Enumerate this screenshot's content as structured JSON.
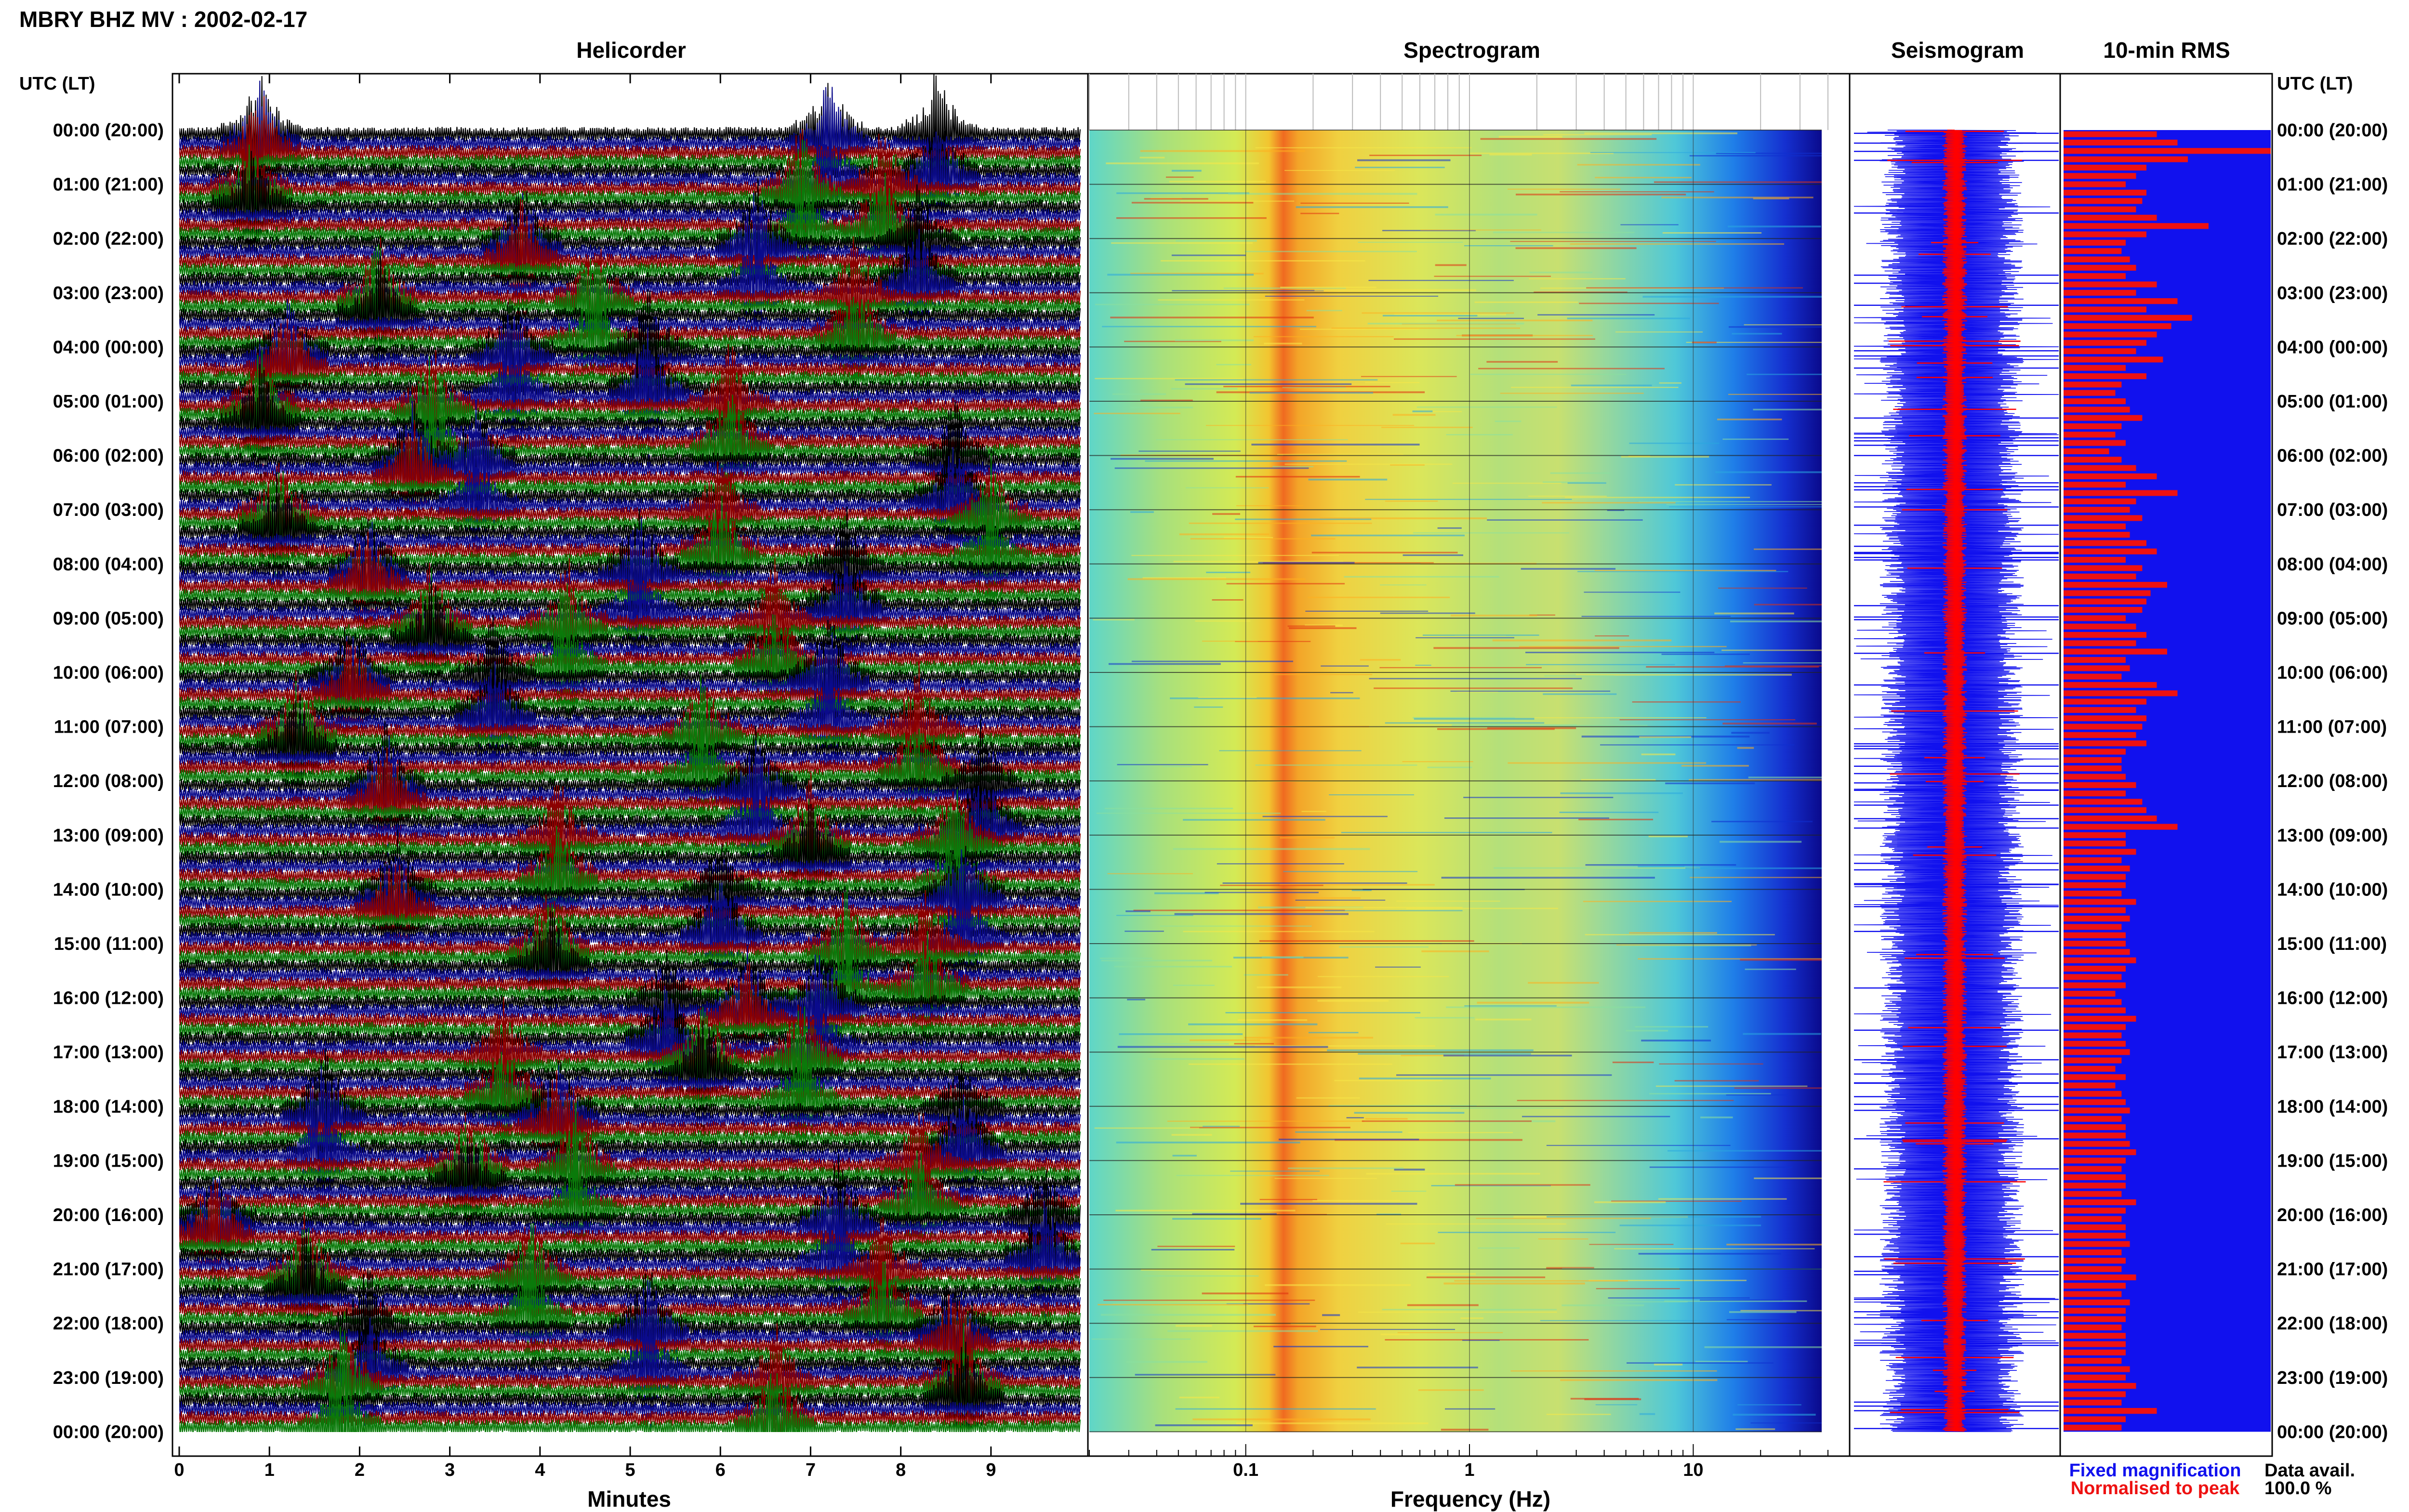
{
  "page": {
    "title": "MBRY BHZ MV : 2002-02-17",
    "utc_lt_left": "UTC (LT)",
    "utc_lt_right": "UTC (LT)"
  },
  "panels": {
    "helicorder": "Helicorder",
    "spectrogram": "Spectrogram",
    "seismogram": "Seismogram",
    "rms": "10-min RMS"
  },
  "time_labels": [
    "00:00 (20:00)",
    "01:00 (21:00)",
    "02:00 (22:00)",
    "03:00 (23:00)",
    "04:00 (00:00)",
    "05:00 (01:00)",
    "06:00 (02:00)",
    "07:00 (03:00)",
    "08:00 (04:00)",
    "09:00 (05:00)",
    "10:00 (06:00)",
    "11:00 (07:00)",
    "12:00 (08:00)",
    "13:00 (09:00)",
    "14:00 (10:00)",
    "15:00 (11:00)",
    "16:00 (12:00)",
    "17:00 (13:00)",
    "18:00 (14:00)",
    "19:00 (15:00)",
    "20:00 (16:00)",
    "21:00 (17:00)",
    "22:00 (18:00)",
    "23:00 (19:00)",
    "00:00 (20:00)"
  ],
  "legend": {
    "fixed": "Fixed magnification",
    "normalised": "Normalised to peak",
    "avail_label": "Data avail.",
    "avail_value": "100.0 %"
  },
  "colors": {
    "helicorder_traces": [
      "#000000",
      "#0b0b8c",
      "#8c0000",
      "#0a7a0a"
    ],
    "seismogram_fixed": "#1111ee",
    "seismogram_normalised": "#ff0000",
    "rms_background": "#1111ee",
    "rms_bars": "#ee1111"
  },
  "chart_data": [
    {
      "type": "line",
      "panel": "helicorder",
      "xlabel": "Minutes",
      "xlim": [
        0,
        10
      ],
      "x_ticks": [
        "0",
        "1",
        "2",
        "3",
        "4",
        "5",
        "6",
        "7",
        "8",
        "9"
      ],
      "rows_per_hour": 6,
      "hours": 24,
      "event_minutes_by_hour": [
        [
          0.9,
          7.2,
          8.4
        ],
        [
          0.8,
          6.9,
          7.8
        ],
        [
          3.8,
          6.4,
          8.2
        ],
        [
          2.2,
          4.6,
          7.5
        ],
        [
          1.2,
          3.7,
          5.2
        ],
        [
          0.9,
          2.8,
          6.1
        ],
        [
          2.6,
          3.3,
          8.6
        ],
        [
          1.1,
          9.0,
          6.0
        ],
        [
          2.1,
          5.1,
          7.4
        ],
        [
          2.8,
          4.3,
          6.6
        ],
        [
          1.9,
          7.2,
          3.5
        ],
        [
          1.3,
          5.8,
          8.2
        ],
        [
          2.3,
          6.4,
          8.9
        ],
        [
          7.0,
          8.6,
          4.2
        ],
        [
          2.4,
          8.7,
          6.0
        ],
        [
          4.1,
          7.4,
          8.3
        ],
        [
          6.3,
          7.1,
          5.4
        ],
        [
          5.8,
          6.9,
          3.6
        ],
        [
          4.2,
          1.6,
          8.7
        ],
        [
          3.2,
          4.4,
          8.2
        ],
        [
          0.4,
          7.3,
          9.6
        ],
        [
          1.4,
          3.9,
          7.8
        ],
        [
          8.6,
          5.2,
          2.1
        ],
        [
          8.7,
          1.8,
          6.6
        ]
      ]
    },
    {
      "type": "heatmap",
      "panel": "spectrogram",
      "xlabel": "Frequency (Hz)",
      "x_scale": "log",
      "xlim": [
        0.02,
        50
      ],
      "x_ticks": [
        "0.1",
        "1",
        "10"
      ],
      "peak_band_hz": [
        0.2,
        0.5
      ],
      "secondary_band_hz": [
        2.5,
        4.5
      ],
      "upper_cutoff_hz": 40
    },
    {
      "type": "line",
      "panel": "seismogram",
      "series": [
        {
          "name": "Fixed magnification"
        },
        {
          "name": "Normalised to peak"
        }
      ]
    },
    {
      "type": "bar",
      "panel": "10-min RMS",
      "values": [
        0.45,
        0.55,
        1.0,
        0.6,
        0.4,
        0.35,
        0.3,
        0.4,
        0.38,
        0.35,
        0.45,
        0.7,
        0.4,
        0.3,
        0.28,
        0.32,
        0.35,
        0.3,
        0.45,
        0.35,
        0.55,
        0.4,
        0.62,
        0.52,
        0.45,
        0.4,
        0.35,
        0.48,
        0.3,
        0.4,
        0.28,
        0.25,
        0.3,
        0.32,
        0.38,
        0.28,
        0.25,
        0.3,
        0.22,
        0.28,
        0.35,
        0.45,
        0.3,
        0.55,
        0.35,
        0.32,
        0.38,
        0.3,
        0.32,
        0.4,
        0.45,
        0.3,
        0.38,
        0.35,
        0.5,
        0.42,
        0.4,
        0.38,
        0.3,
        0.35,
        0.4,
        0.35,
        0.5,
        0.3,
        0.32,
        0.28,
        0.45,
        0.55,
        0.4,
        0.35,
        0.4,
        0.38,
        0.35,
        0.4,
        0.3,
        0.28,
        0.28,
        0.3,
        0.35,
        0.3,
        0.38,
        0.4,
        0.45,
        0.55,
        0.3,
        0.3,
        0.35,
        0.28,
        0.32,
        0.3,
        0.3,
        0.28,
        0.35,
        0.3,
        0.32,
        0.28,
        0.3,
        0.3,
        0.32,
        0.35,
        0.3,
        0.28,
        0.3,
        0.25,
        0.28,
        0.3,
        0.35,
        0.3,
        0.28,
        0.3,
        0.32,
        0.28,
        0.25,
        0.3,
        0.25,
        0.28,
        0.3,
        0.32,
        0.28,
        0.3,
        0.3,
        0.32,
        0.35,
        0.3,
        0.28,
        0.3,
        0.3,
        0.28,
        0.35,
        0.3,
        0.28,
        0.3,
        0.3,
        0.32,
        0.28,
        0.3,
        0.28,
        0.35,
        0.3,
        0.28,
        0.32,
        0.3,
        0.3,
        0.28,
        0.3,
        0.3,
        0.3,
        0.28,
        0.32,
        0.3,
        0.35,
        0.3,
        0.28,
        0.45,
        0.3,
        0.28
      ]
    }
  ]
}
